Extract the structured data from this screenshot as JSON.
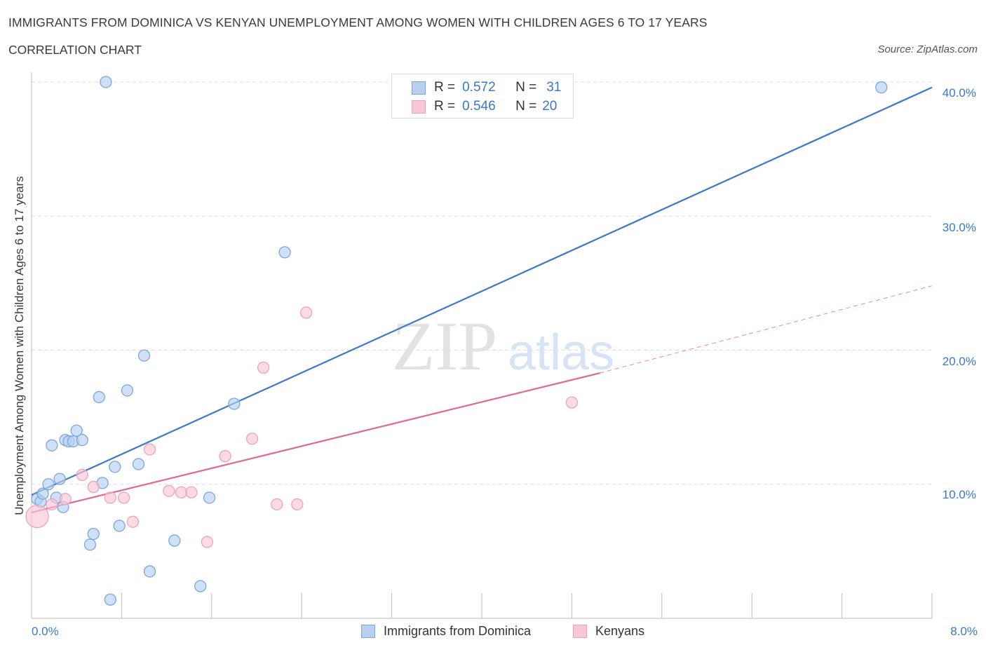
{
  "header": {
    "title": "IMMIGRANTS FROM DOMINICA VS KENYAN UNEMPLOYMENT AMONG WOMEN WITH CHILDREN AGES 6 TO 17 YEARS",
    "subtitle": "CORRELATION CHART",
    "source": "Source: ZipAtlas.com"
  },
  "colors": {
    "blue": "#3a78c9",
    "blue_fill": "#b7d0f2",
    "pink": "#e0678f",
    "pink_fill": "#f8c6d4",
    "grid": "#dddddd"
  },
  "legend": {
    "r_label": "R =",
    "n_label": "N =",
    "blue": {
      "r": "0.572",
      "n": "31"
    },
    "pink": {
      "r": "0.546",
      "n": "20"
    }
  },
  "watermark": {
    "zip": "ZIP",
    "atlas": "atlas"
  },
  "chart_data": {
    "type": "scatter",
    "title": "IMMIGRANTS FROM DOMINICA VS KENYAN UNEMPLOYMENT AMONG WOMEN WITH CHILDREN AGES 6 TO 17 YEARS",
    "xlabel": "",
    "ylabel": "Unemployment Among Women with Children Ages 6 to 17 years",
    "xlim": [
      0,
      8
    ],
    "ylim": [
      0,
      40
    ],
    "x_tick_labels": [
      "0.0%",
      "8.0%"
    ],
    "y_ticks": [
      10,
      20,
      30,
      40
    ],
    "y_tick_labels": [
      "10.0%",
      "20.0%",
      "30.0%",
      "40.0%"
    ],
    "grid": true,
    "legend_position": "top-center",
    "series": [
      {
        "name": "Immigrants from Dominica",
        "color": "#3a78c9",
        "R": 0.572,
        "N": 31,
        "trend": {
          "x0": 0.0,
          "y0": 9.2,
          "x1": 8.0,
          "y1": 39.6
        },
        "points": [
          {
            "x": 0.05,
            "y": 8.9
          },
          {
            "x": 0.08,
            "y": 8.7
          },
          {
            "x": 0.1,
            "y": 9.3
          },
          {
            "x": 0.15,
            "y": 10.0
          },
          {
            "x": 0.18,
            "y": 12.9
          },
          {
            "x": 0.22,
            "y": 9.0
          },
          {
            "x": 0.25,
            "y": 10.4
          },
          {
            "x": 0.28,
            "y": 8.3
          },
          {
            "x": 0.3,
            "y": 13.3
          },
          {
            "x": 0.33,
            "y": 13.2
          },
          {
            "x": 0.37,
            "y": 13.2
          },
          {
            "x": 0.4,
            "y": 14.0
          },
          {
            "x": 0.45,
            "y": 13.3
          },
          {
            "x": 0.52,
            "y": 5.5
          },
          {
            "x": 0.55,
            "y": 6.3
          },
          {
            "x": 0.6,
            "y": 16.5
          },
          {
            "x": 0.63,
            "y": 10.1
          },
          {
            "x": 0.66,
            "y": 40.0
          },
          {
            "x": 0.7,
            "y": 1.4
          },
          {
            "x": 0.74,
            "y": 11.3
          },
          {
            "x": 0.78,
            "y": 6.9
          },
          {
            "x": 0.85,
            "y": 17.0
          },
          {
            "x": 0.95,
            "y": 11.5
          },
          {
            "x": 1.0,
            "y": 19.6
          },
          {
            "x": 1.05,
            "y": 3.5
          },
          {
            "x": 1.27,
            "y": 5.8
          },
          {
            "x": 1.5,
            "y": 2.4
          },
          {
            "x": 1.58,
            "y": 9.0
          },
          {
            "x": 1.8,
            "y": 16.0
          },
          {
            "x": 2.25,
            "y": 27.3
          },
          {
            "x": 7.55,
            "y": 39.6
          }
        ]
      },
      {
        "name": "Kenyans",
        "color": "#e0678f",
        "R": 0.546,
        "N": 20,
        "trend_solid": {
          "x0": 0.0,
          "y0": 7.9,
          "x1": 5.05,
          "y1": 18.3
        },
        "trend_dashed": {
          "x0": 5.05,
          "y0": 18.3,
          "x1": 8.0,
          "y1": 24.8
        },
        "points": [
          {
            "x": 0.05,
            "y": 7.6
          },
          {
            "x": 0.18,
            "y": 8.5
          },
          {
            "x": 0.3,
            "y": 8.9
          },
          {
            "x": 0.45,
            "y": 10.7
          },
          {
            "x": 0.55,
            "y": 9.8
          },
          {
            "x": 0.7,
            "y": 9.0
          },
          {
            "x": 0.82,
            "y": 9.0
          },
          {
            "x": 0.9,
            "y": 7.2
          },
          {
            "x": 1.05,
            "y": 12.6
          },
          {
            "x": 1.22,
            "y": 9.5
          },
          {
            "x": 1.33,
            "y": 9.4
          },
          {
            "x": 1.42,
            "y": 9.4
          },
          {
            "x": 1.56,
            "y": 5.7
          },
          {
            "x": 1.72,
            "y": 12.1
          },
          {
            "x": 1.96,
            "y": 13.4
          },
          {
            "x": 2.06,
            "y": 18.7
          },
          {
            "x": 2.18,
            "y": 8.5
          },
          {
            "x": 2.36,
            "y": 8.5
          },
          {
            "x": 2.44,
            "y": 22.8
          },
          {
            "x": 4.8,
            "y": 16.1
          }
        ]
      }
    ]
  }
}
